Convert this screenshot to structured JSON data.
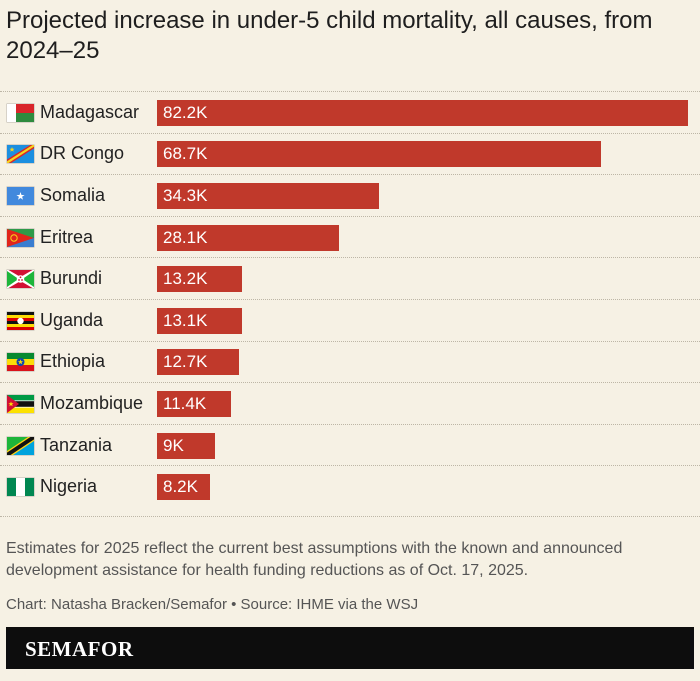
{
  "title": "Projected increase in under-5 child mortality, all causes, from 2024–25",
  "note": "Estimates for 2025 reflect the current best assumptions with the known and announced development assistance for health funding reductions as of Oct. 17, 2025.",
  "credit": "Chart: Natasha Bracken/Semafor • Source: IHME via the WSJ",
  "footer": {
    "logo": "SEMAFOR"
  },
  "colors": {
    "bar": "#c0392b",
    "background": "#f6f1e4",
    "footer": "#0d0d0d"
  },
  "chart_data": {
    "type": "bar",
    "orientation": "horizontal",
    "categories": [
      "Madagascar",
      "DR Congo",
      "Somalia",
      "Eritrea",
      "Burundi",
      "Uganda",
      "Ethiopia",
      "Mozambique",
      "Tanzania",
      "Nigeria"
    ],
    "values": [
      82200,
      68700,
      34300,
      28100,
      13200,
      13100,
      12700,
      11400,
      9000,
      8200
    ],
    "value_labels": [
      "82.2K",
      "68.7K",
      "34.3K",
      "28.1K",
      "13.2K",
      "13.1K",
      "12.7K",
      "11.4K",
      "9K",
      "8.2K"
    ],
    "flags": [
      "madagascar-flag-icon",
      "dr-congo-flag-icon",
      "somalia-flag-icon",
      "eritrea-flag-icon",
      "burundi-flag-icon",
      "uganda-flag-icon",
      "ethiopia-flag-icon",
      "mozambique-flag-icon",
      "tanzania-flag-icon",
      "nigeria-flag-icon"
    ],
    "xlim": [
      0,
      82200
    ],
    "grid": false,
    "legend": "none"
  }
}
